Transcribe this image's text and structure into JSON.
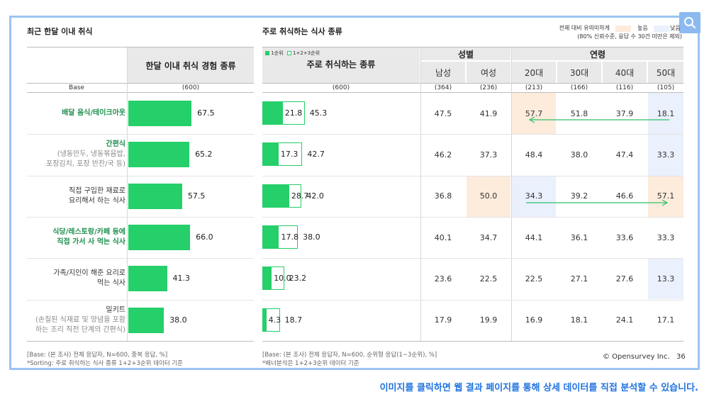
{
  "left_title": "최근 한달 이내 취식",
  "middle_title": "주로 취식하는 식사 종류",
  "legend": {
    "line1": "전체 대비 유의미하게",
    "line2": "(80% 신뢰수준, 응답 수 30건 미만은 제외)",
    "high": "높음",
    "low": "낮음",
    "high_color": "#fdebdc",
    "low_color": "#eaf0fc"
  },
  "left_header": "한달 이내 취식 경험 종류",
  "base_label": "Base",
  "left_base": "(600)",
  "mid_header": "주로 취식하는 종류",
  "mid_legend_first": "1순위",
  "mid_legend_total": "1+2+3순위",
  "mid_base": "(600)",
  "gender_header": "성별",
  "age_header": "연령",
  "columns": [
    "남성",
    "여성",
    "20대",
    "30대",
    "40대",
    "50대"
  ],
  "column_bases": [
    "(364)",
    "(236)",
    "(213)",
    "(166)",
    "(116)",
    "(105)"
  ],
  "rows": [
    {
      "label": "배달 음식/테이크아웃",
      "sub": "",
      "green": true,
      "left": "67.5",
      "first": "21.8",
      "total": "45.3",
      "values": [
        "47.5",
        "41.9",
        "57.7",
        "51.8",
        "37.9",
        "18.1"
      ],
      "marks": [
        "",
        "",
        "high",
        "",
        "",
        "low"
      ]
    },
    {
      "label": "간편식",
      "sub1": "(냉동만두, 냉동볶음밥,",
      "sub2": "포장김치, 포장 반찬/국 등)",
      "green": true,
      "left": "65.2",
      "first": "17.3",
      "total": "42.7",
      "values": [
        "46.2",
        "37.3",
        "48.4",
        "38.0",
        "47.4",
        "33.3"
      ],
      "marks": [
        "",
        "",
        "",
        "",
        "",
        "low"
      ]
    },
    {
      "label1": "직접 구입한 재료로",
      "label2": "요리해서 하는 식사",
      "green": false,
      "left": "57.5",
      "first": "28.7",
      "total": "42.0",
      "values": [
        "36.8",
        "50.0",
        "34.3",
        "39.2",
        "46.6",
        "57.1"
      ],
      "marks": [
        "",
        "high",
        "low",
        "",
        "",
        "high"
      ]
    },
    {
      "label1": "식당/레스토랑/카페 등에",
      "label2": "직접 가서 사 먹는 식사",
      "green": true,
      "left": "66.0",
      "first": "17.8",
      "total": "38.0",
      "values": [
        "40.1",
        "34.7",
        "44.1",
        "36.1",
        "33.6",
        "33.3"
      ],
      "marks": [
        "",
        "",
        "",
        "",
        "",
        ""
      ]
    },
    {
      "label1": "가족/지인이 해준 요리로",
      "label2": "먹는 식사",
      "green": false,
      "left": "41.3",
      "first": "10.0",
      "total": "23.2",
      "values": [
        "23.6",
        "22.5",
        "22.5",
        "27.1",
        "27.6",
        "13.3"
      ],
      "marks": [
        "",
        "",
        "",
        "",
        "",
        "low"
      ]
    },
    {
      "label": "밀키트",
      "sub1": "(손질된 식재료 및 양념을 포함",
      "sub2": "하는 조리 직전 단계의 간편식)",
      "green": false,
      "left": "38.0",
      "first": "4.3",
      "total": "18.7",
      "values": [
        "17.9",
        "19.9",
        "16.9",
        "18.1",
        "24.1",
        "17.1"
      ],
      "marks": [
        "",
        "",
        "",
        "",
        "",
        ""
      ]
    }
  ],
  "chart_data": {
    "type": "bar",
    "title": "최근 한달 이내 취식 / 주로 취식하는 식사 종류",
    "categories": [
      "배달 음식/테이크아웃",
      "간편식",
      "직접 구입한 재료로 요리해서 하는 식사",
      "식당/레스토랑/카페 등에 직접 가서 사 먹는 식사",
      "가족/지인이 해준 요리로 먹는 식사",
      "밀키트"
    ],
    "series": [
      {
        "name": "한달 이내 취식 경험 종류",
        "values": [
          67.5,
          65.2,
          57.5,
          66.0,
          41.3,
          38.0
        ]
      },
      {
        "name": "1순위",
        "values": [
          21.8,
          17.3,
          28.7,
          17.8,
          10.0,
          4.3
        ]
      },
      {
        "name": "1+2+3순위",
        "values": [
          45.3,
          42.7,
          42.0,
          38.0,
          23.2,
          18.7
        ]
      }
    ],
    "xlim": [
      0,
      100
    ]
  },
  "footer_left_1": "[Base: (본 조사) 전체 응답자, N=600, 중복 응답, %]",
  "footer_left_2": "*Sorting: 주로 취식하는 식사 종류 1+2+3순위 데이터 기준",
  "footer_mid_1": "[Base: (본 조사) 전체 응답자, N=600, 순위형 응답(1~3순위), %]",
  "footer_mid_2": "*배너분석은 1+2+3순위 데이터 기준",
  "copyright": "© Opensurvey Inc.",
  "page_number": "36",
  "caption": "이미지를 클릭하면 웹 결과 페이지를 통해 상세 데이터를 직접 분석할 수 있습니다."
}
